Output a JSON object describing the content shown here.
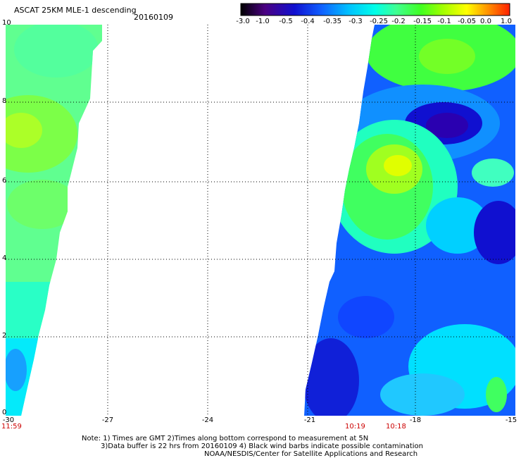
{
  "header": {
    "title": "ASCAT 25KM MLE-1 descending",
    "date": "20160109"
  },
  "colorbar": {
    "labels": [
      "-3.0",
      "-1.0",
      "-0.5",
      "-0.4",
      "-0.35",
      "-0.3",
      "-0.25",
      "-0.2",
      "-0.15",
      "-0.1",
      "-0.05",
      "0.0",
      "1.0"
    ],
    "stops": [
      "#000000",
      "#4b0082",
      "#1010d0",
      "#1060ff",
      "#00c0ff",
      "#00ffe8",
      "#40ff90",
      "#40ff20",
      "#a0ff00",
      "#ffff00",
      "#ff9000",
      "#ff2000"
    ]
  },
  "axes": {
    "y_ticks": [
      "10",
      "8",
      "6",
      "4",
      "2",
      "0"
    ],
    "x_ticks": [
      "-30",
      "-27",
      "-24",
      "-21",
      "-18",
      "-15"
    ]
  },
  "times": [
    "11:59",
    "10:19",
    "10:18"
  ],
  "notes": [
    "Note: 1) Times are GMT 2)Times along bottom correspond to measurement at 5N",
    "3)Data buffer is 22 hrs from 20160109 4) Black wind barbs indicate possible contamination",
    "NOAA/NESDIS/Center for Satellite Applications and Research"
  ],
  "map_data": {
    "lon_range": [
      -30,
      -15
    ],
    "lat_range": [
      0,
      10
    ],
    "swaths": [
      "west",
      "east"
    ],
    "grid": true
  }
}
